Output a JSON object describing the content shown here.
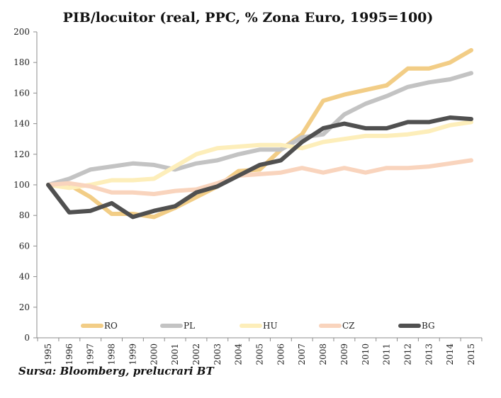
{
  "chart_data": {
    "type": "line",
    "title": "PIB/locuitor (real, PPC, % Zona Euro, 1995=100)",
    "xlabel": "",
    "ylabel": "",
    "ylim": [
      0,
      200
    ],
    "yticks": [
      0,
      20,
      40,
      60,
      80,
      100,
      120,
      140,
      160,
      180,
      200
    ],
    "categories": [
      "1995",
      "1996",
      "1997",
      "1998",
      "1999",
      "2000",
      "2001",
      "2002",
      "2003",
      "2004",
      "2005",
      "2006",
      "2007",
      "2008",
      "2009",
      "2010",
      "2011",
      "2012",
      "2013",
      "2014",
      "2015"
    ],
    "grid": false,
    "legend_position": "bottom-inside",
    "series": [
      {
        "name": "RO",
        "color": "#f2cd86",
        "values": [
          100,
          100,
          92,
          81,
          81,
          79,
          85,
          92,
          99,
          109,
          110,
          123,
          133,
          155,
          159,
          162,
          165,
          176,
          176,
          180,
          188
        ]
      },
      {
        "name": "PL",
        "color": "#c3c3c3",
        "values": [
          100,
          104,
          110,
          112,
          114,
          113,
          110,
          114,
          116,
          120,
          123,
          123,
          131,
          133,
          146,
          153,
          158,
          164,
          167,
          169,
          173
        ]
      },
      {
        "name": "HU",
        "color": "#fdeeba",
        "values": [
          100,
          98,
          100,
          103,
          103,
          104,
          112,
          120,
          124,
          125,
          126,
          126,
          124,
          128,
          130,
          132,
          132,
          133,
          135,
          139,
          141
        ]
      },
      {
        "name": "CZ",
        "color": "#f9d4bd",
        "values": [
          100,
          101,
          99,
          95,
          95,
          94,
          96,
          97,
          101,
          106,
          107,
          108,
          111,
          108,
          111,
          108,
          111,
          111,
          112,
          114,
          116
        ]
      },
      {
        "name": "BG",
        "color": "#505050",
        "values": [
          100,
          82,
          83,
          88,
          79,
          83,
          86,
          95,
          99,
          106,
          113,
          116,
          128,
          137,
          140,
          137,
          137,
          141,
          141,
          144,
          143
        ]
      }
    ]
  },
  "source": "Sursa: Bloomberg, prelucrari BT"
}
